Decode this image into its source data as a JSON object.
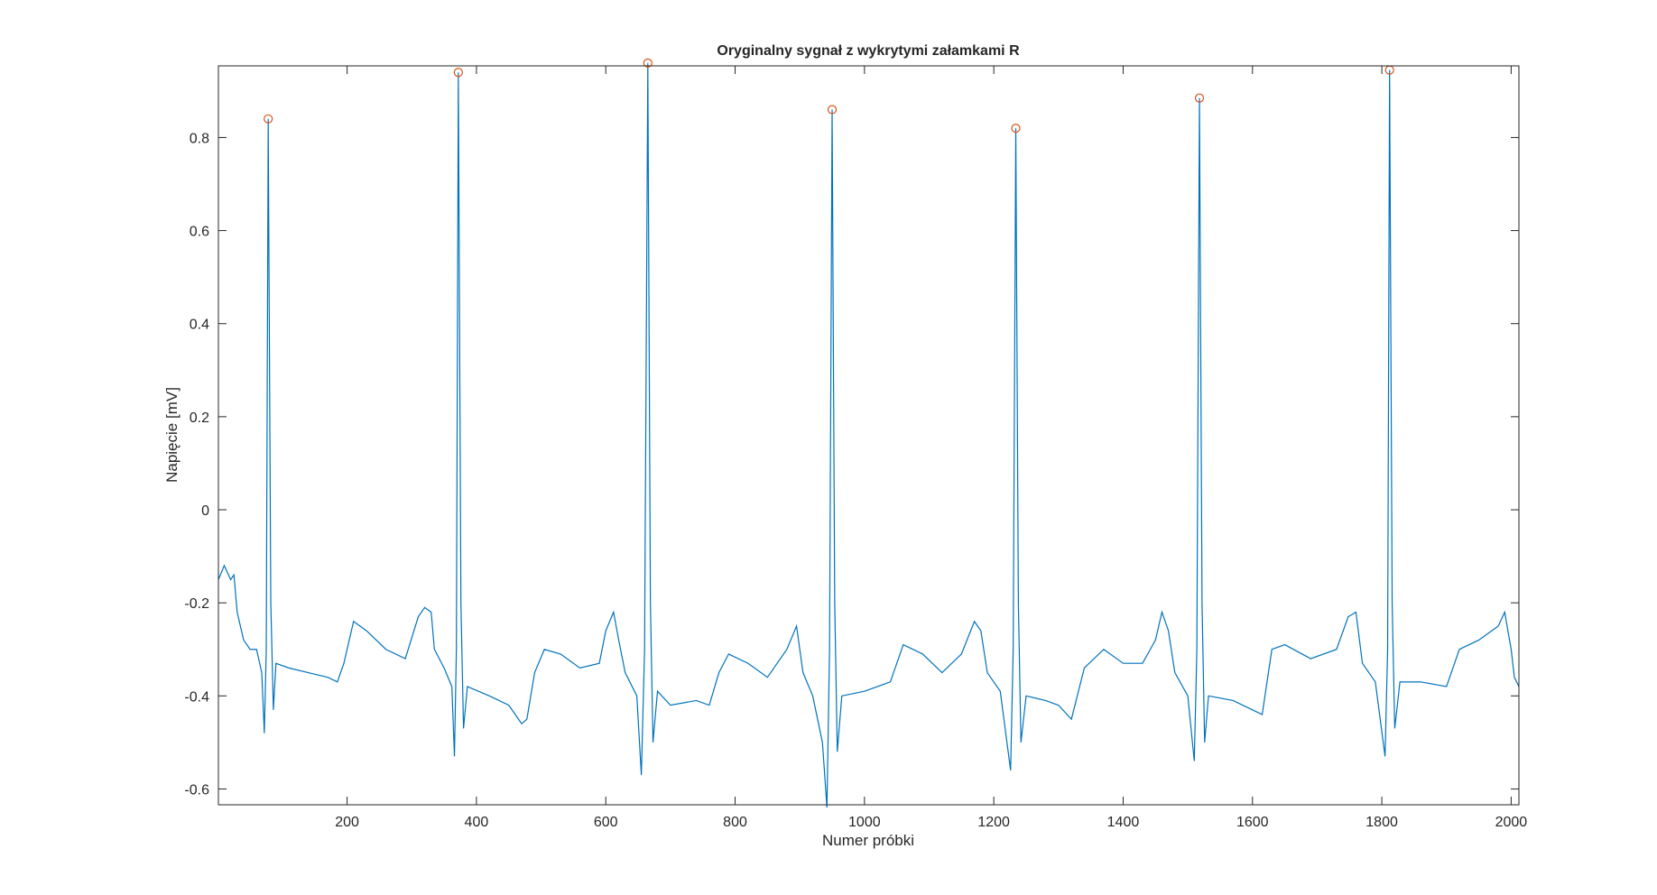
{
  "chart_data": {
    "type": "line",
    "title": "Oryginalny sygnał z wykrytymi załamkami R",
    "xlabel": "Numer próbki",
    "ylabel": "Napięcie [mV]",
    "xlim": [
      1,
      2012
    ],
    "ylim": [
      -0.634,
      0.954
    ],
    "xticks": [
      200,
      400,
      600,
      800,
      1000,
      1200,
      1400,
      1600,
      1800,
      2000
    ],
    "yticks": [
      -0.6,
      -0.4,
      -0.2,
      0,
      0.2,
      0.4,
      0.6,
      0.8
    ],
    "color": "#0072bd",
    "x": [
      1,
      10,
      20,
      25,
      30,
      40,
      50,
      60,
      68,
      72,
      75,
      78,
      82,
      86,
      90,
      110,
      140,
      170,
      185,
      195,
      210,
      230,
      260,
      290,
      310,
      320,
      330,
      335,
      350,
      362,
      366,
      369,
      372,
      376,
      380,
      386,
      420,
      450,
      470,
      478,
      490,
      505,
      530,
      560,
      590,
      600,
      612,
      620,
      630,
      648,
      655,
      660,
      665,
      669,
      673,
      680,
      700,
      740,
      760,
      775,
      790,
      820,
      850,
      880,
      895,
      905,
      920,
      935,
      942,
      946,
      950,
      954,
      958,
      965,
      1000,
      1040,
      1060,
      1090,
      1120,
      1150,
      1170,
      1180,
      1190,
      1210,
      1226,
      1230,
      1234,
      1238,
      1242,
      1250,
      1280,
      1300,
      1320,
      1340,
      1370,
      1400,
      1430,
      1450,
      1460,
      1470,
      1480,
      1500,
      1510,
      1514,
      1518,
      1522,
      1526,
      1532,
      1570,
      1600,
      1615,
      1630,
      1650,
      1690,
      1730,
      1748,
      1760,
      1770,
      1790,
      1805,
      1809,
      1812,
      1816,
      1820,
      1828,
      1860,
      1900,
      1920,
      1950,
      1980,
      1990,
      2000,
      2005,
      2012
    ],
    "values": [
      -0.15,
      -0.12,
      -0.15,
      -0.14,
      -0.22,
      -0.28,
      -0.3,
      -0.3,
      -0.35,
      -0.48,
      -0.3,
      0.84,
      -0.2,
      -0.43,
      -0.33,
      -0.34,
      -0.35,
      -0.36,
      -0.37,
      -0.33,
      -0.24,
      -0.26,
      -0.3,
      -0.32,
      -0.23,
      -0.21,
      -0.22,
      -0.3,
      -0.34,
      -0.38,
      -0.53,
      -0.3,
      0.94,
      -0.2,
      -0.47,
      -0.38,
      -0.4,
      -0.42,
      -0.46,
      -0.45,
      -0.35,
      -0.3,
      -0.31,
      -0.34,
      -0.33,
      -0.26,
      -0.22,
      -0.28,
      -0.35,
      -0.4,
      -0.57,
      -0.3,
      0.96,
      -0.2,
      -0.5,
      -0.39,
      -0.42,
      -0.41,
      -0.42,
      -0.35,
      -0.31,
      -0.33,
      -0.36,
      -0.3,
      -0.25,
      -0.35,
      -0.4,
      -0.5,
      -0.64,
      -0.3,
      0.86,
      -0.2,
      -0.52,
      -0.4,
      -0.39,
      -0.37,
      -0.29,
      -0.31,
      -0.35,
      -0.31,
      -0.24,
      -0.26,
      -0.35,
      -0.39,
      -0.56,
      -0.3,
      0.82,
      -0.2,
      -0.5,
      -0.4,
      -0.41,
      -0.42,
      -0.45,
      -0.34,
      -0.3,
      -0.33,
      -0.33,
      -0.28,
      -0.22,
      -0.26,
      -0.35,
      -0.4,
      -0.54,
      -0.3,
      0.885,
      -0.2,
      -0.5,
      -0.4,
      -0.41,
      -0.43,
      -0.44,
      -0.3,
      -0.29,
      -0.32,
      -0.3,
      -0.23,
      -0.22,
      -0.33,
      -0.37,
      -0.53,
      -0.3,
      0.945,
      -0.2,
      -0.47,
      -0.37,
      -0.37,
      -0.38,
      -0.3,
      -0.28,
      -0.25,
      -0.22,
      -0.3,
      -0.36,
      -0.38
    ],
    "peaks": {
      "color": "#d95319",
      "x": [
        78,
        372,
        665,
        950,
        1234,
        1518,
        1812
      ],
      "values": [
        0.84,
        0.94,
        0.96,
        0.86,
        0.82,
        0.885,
        0.945
      ]
    }
  }
}
